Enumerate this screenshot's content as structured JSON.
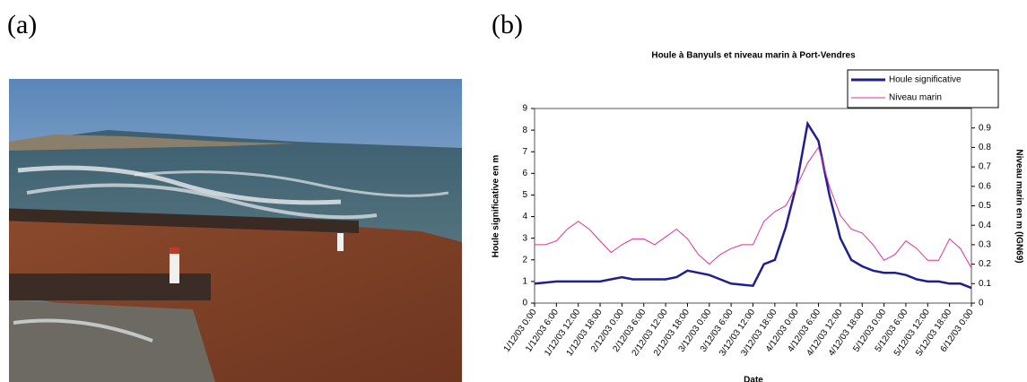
{
  "panel_labels": [
    "(a)",
    "(b)"
  ],
  "chart_data": {
    "type": "line",
    "title": "Houle à Banyuls et niveau marin à Port-Vendres",
    "x_label": "Date",
    "y_label": "Houle significative en m",
    "y2_label": "Niveau marin en m (IGN69)",
    "categories": [
      "1/12/03 0:00",
      null,
      "1/12/03 6:00",
      null,
      "1/12/03 12:00",
      null,
      "1/12/03 18:00",
      null,
      "2/12/03 0:00",
      null,
      "2/12/03 6:00",
      null,
      "2/12/03 12:00",
      null,
      "2/12/03 18:00",
      null,
      "3/12/03 0:00",
      null,
      "3/12/03 6:00",
      null,
      "3/12/03 12:00",
      null,
      "3/12/03 18:00",
      null,
      "4/12/03 0:00",
      null,
      "4/12/03 6:00",
      null,
      "4/12/03 12:00",
      null,
      "4/12/03 18:00",
      null,
      "5/12/03 0:00",
      null,
      "5/12/03 6:00",
      null,
      "5/12/03 12:00",
      null,
      "5/12/03 18:00",
      null,
      "6/12/03 0:00"
    ],
    "series": [
      {
        "name": "Houle significative",
        "color": "#1f1f8f",
        "axis": "y",
        "values": [
          0.9,
          0.95,
          1.0,
          1.0,
          1.0,
          1.0,
          1.0,
          1.1,
          1.2,
          1.1,
          1.1,
          1.1,
          1.1,
          1.2,
          1.5,
          1.4,
          1.3,
          1.1,
          0.9,
          0.85,
          0.8,
          1.8,
          2.0,
          3.5,
          5.5,
          8.3,
          7.5,
          5.0,
          3.0,
          2.0,
          1.7,
          1.5,
          1.4,
          1.4,
          1.3,
          1.1,
          1.0,
          1.0,
          0.9,
          0.9,
          0.7
        ]
      },
      {
        "name": "Niveau marin",
        "color": "#e0309a",
        "axis": "y2",
        "values": [
          0.3,
          0.3,
          0.32,
          0.38,
          0.42,
          0.38,
          0.32,
          0.26,
          0.3,
          0.33,
          0.33,
          0.3,
          0.34,
          0.38,
          0.33,
          0.25,
          0.2,
          0.25,
          0.28,
          0.3,
          0.3,
          0.42,
          0.47,
          0.5,
          0.6,
          0.72,
          0.8,
          0.6,
          0.45,
          0.38,
          0.36,
          0.3,
          0.22,
          0.25,
          0.32,
          0.28,
          0.22,
          0.22,
          0.33,
          0.28,
          0.18
        ]
      }
    ],
    "ylim": [
      0,
      9
    ],
    "yticks": [
      0,
      1,
      2,
      3,
      4,
      5,
      6,
      7,
      8,
      9
    ],
    "y2lim": [
      0,
      1
    ],
    "y2ticks": [
      0,
      0.1,
      0.2,
      0.3,
      0.4,
      0.5,
      0.6,
      0.7,
      0.8,
      0.9
    ],
    "grid": false,
    "legend": "top-right"
  }
}
